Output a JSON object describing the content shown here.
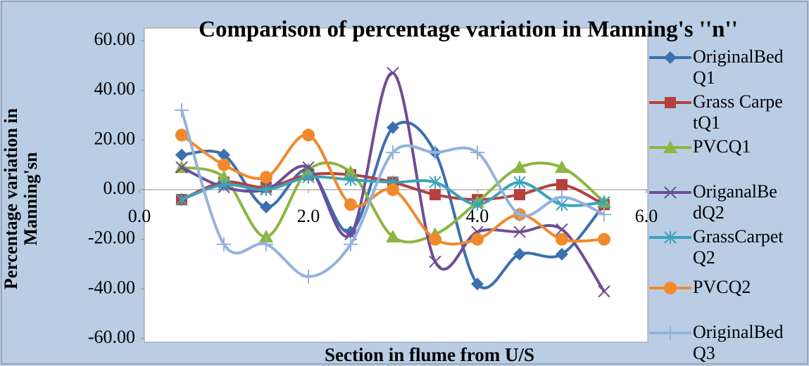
{
  "chart_data": {
    "type": "line",
    "title": "Comparison of percentage variation in Manning's ''n''",
    "xlabel": "Section in flume from U/S",
    "ylabel": "Percentage variation in Manning'sn",
    "x": [
      0.5,
      1.0,
      1.5,
      2.0,
      2.5,
      3.0,
      3.5,
      4.0,
      4.5,
      5.0,
      5.5
    ],
    "xlim": [
      0,
      6
    ],
    "ylim": [
      -60,
      60
    ],
    "xticks": [
      {
        "value": 0,
        "label": "0.0"
      },
      {
        "value": 2,
        "label": "2.0"
      },
      {
        "value": 4,
        "label": "4.0"
      },
      {
        "value": 6,
        "label": "6.0"
      }
    ],
    "yticks": [
      {
        "value": -60,
        "label": "-60.00"
      },
      {
        "value": -40,
        "label": "-40.00"
      },
      {
        "value": -20,
        "label": "-20.00"
      },
      {
        "value": 0,
        "label": "0.00"
      },
      {
        "value": 20,
        "label": "20.00"
      },
      {
        "value": 40,
        "label": "40.00"
      },
      {
        "value": 60,
        "label": "60.00"
      }
    ],
    "smooth": true,
    "legend": "right",
    "series": [
      {
        "name": "OriginalBedQ1",
        "color": "#3c6fb0",
        "marker": "diamond",
        "values": [
          14,
          14,
          -7,
          8,
          -17,
          25,
          15,
          -38,
          -26,
          -26,
          -6
        ]
      },
      {
        "name": "Grass CarpetQ1",
        "color": "#b5413e",
        "marker": "square",
        "values": [
          -4,
          3,
          1,
          6,
          6,
          3,
          -2,
          -4,
          -2,
          2,
          -6
        ]
      },
      {
        "name": "PVCQ1",
        "color": "#8db542",
        "marker": "triangle",
        "values": [
          9,
          5,
          -19,
          8,
          7,
          -19,
          -18,
          -5,
          9,
          9,
          -5
        ]
      },
      {
        "name": "OriganalBedQ2",
        "color": "#6e4d96",
        "marker": "x",
        "values": [
          9,
          1,
          0,
          9,
          -18,
          47,
          -29,
          -17,
          -17,
          -16,
          -41
        ]
      },
      {
        "name": "GrassCarpetQ2",
        "color": "#3aa3bd",
        "marker": "star",
        "values": [
          -4,
          2,
          0,
          5,
          4,
          3,
          3,
          -6,
          3,
          -6,
          -5
        ]
      },
      {
        "name": "PVCQ2",
        "color": "#f08a2c",
        "marker": "circle",
        "values": [
          22,
          10,
          5,
          22,
          -6,
          0,
          -20,
          -20,
          -10,
          -20,
          -20
        ]
      },
      {
        "name": "OriginalBedQ3",
        "color": "#94b2dc",
        "marker": "plus",
        "values": [
          32,
          -22,
          -22,
          -35,
          -22,
          15,
          15,
          15,
          -10,
          -3,
          -10
        ]
      }
    ]
  }
}
